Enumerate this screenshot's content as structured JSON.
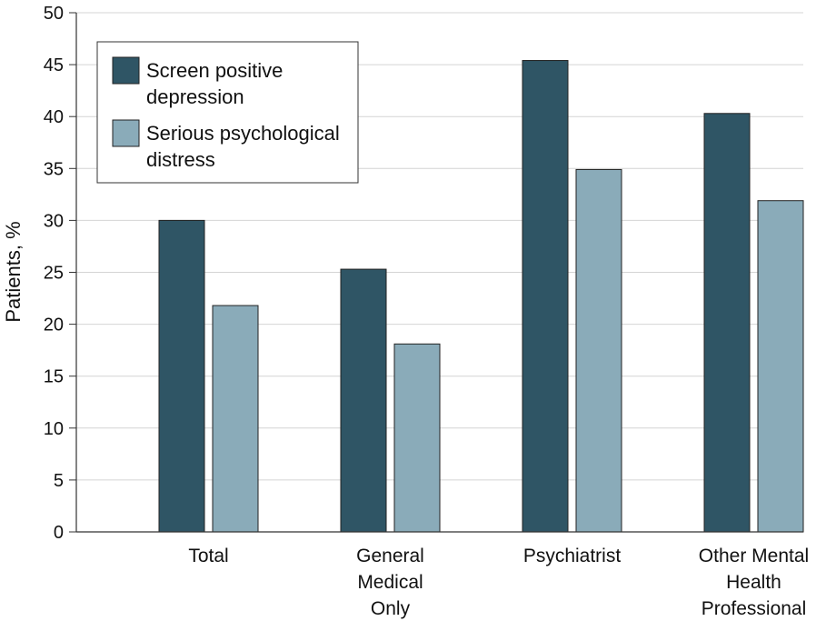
{
  "chart_data": {
    "type": "bar",
    "title": "",
    "xlabel": "",
    "ylabel": "Patients, %",
    "ylim": [
      0,
      50
    ],
    "yticks": [
      0,
      5,
      10,
      15,
      20,
      25,
      30,
      35,
      40,
      45,
      50
    ],
    "grid": true,
    "legend_position": "top-left",
    "categories": [
      [
        "Total"
      ],
      [
        "General",
        "Medical",
        "Only"
      ],
      [
        "Psychiatrist"
      ],
      [
        "Other Mental",
        "Health",
        "Professional"
      ]
    ],
    "series": [
      {
        "name": [
          "Screen positive",
          "depression"
        ],
        "color": "#2f5565",
        "values": [
          30.0,
          25.3,
          45.4,
          40.3
        ]
      },
      {
        "name": [
          "Serious psychological",
          "distress"
        ],
        "color": "#8aabb9",
        "values": [
          21.8,
          18.1,
          34.9,
          31.9
        ]
      }
    ]
  }
}
